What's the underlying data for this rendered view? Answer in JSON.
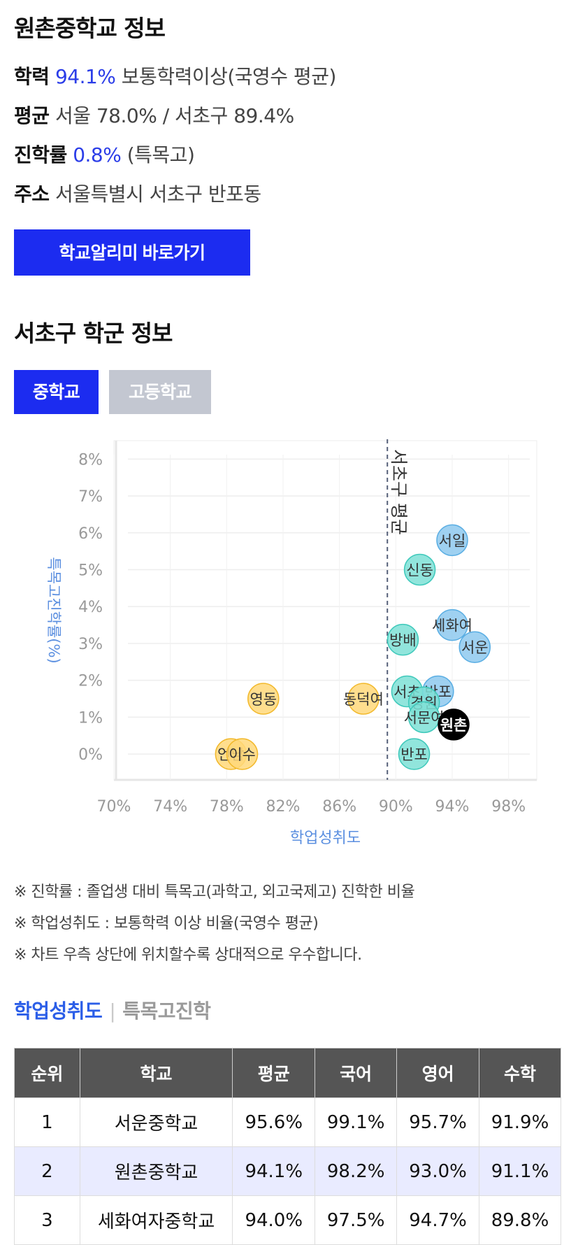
{
  "school": {
    "title": "원촌중학교 정보",
    "achievement_label": "학력",
    "achievement_value": "94.1%",
    "achievement_desc": "보통학력이상(국영수 평균)",
    "average_label": "평균",
    "average_value": "서울 78.0% / 서초구 89.4%",
    "rate_label": "진학률",
    "rate_value": "0.8%",
    "rate_desc": "(특목고)",
    "address_label": "주소",
    "address_value": "서울특별시 서초구 반포동",
    "link_button": "학교알리미 바로가기"
  },
  "district": {
    "title": "서초구 학군 정보",
    "tabs": [
      {
        "label": "중학교",
        "active": true
      },
      {
        "label": "고등학교",
        "active": false
      }
    ]
  },
  "chart_data": {
    "type": "scatter",
    "xlabel": "학업성취도",
    "ylabel": "특목고진학률(%)",
    "xlim": [
      70,
      100
    ],
    "ylim": [
      -0.7,
      8.5
    ],
    "x_ticks": [
      "70%",
      "74%",
      "78%",
      "82%",
      "86%",
      "90%",
      "94%",
      "98%"
    ],
    "y_ticks": [
      "0%",
      "1%",
      "2%",
      "3%",
      "4%",
      "5%",
      "6%",
      "7%",
      "8%"
    ],
    "reference_line": {
      "x": 89.4,
      "label": "서초구 평균"
    },
    "grid": true,
    "points": [
      {
        "label": "서일",
        "x": 94.0,
        "y": 5.8,
        "group": "blue"
      },
      {
        "label": "신동",
        "x": 91.7,
        "y": 5.0,
        "group": "teal"
      },
      {
        "label": "세화여",
        "x": 94.0,
        "y": 3.5,
        "group": "blue"
      },
      {
        "label": "서운",
        "x": 95.6,
        "y": 2.9,
        "group": "blue"
      },
      {
        "label": "방배",
        "x": 90.5,
        "y": 3.1,
        "group": "teal"
      },
      {
        "label": "영동",
        "x": 80.6,
        "y": 1.5,
        "group": "yellow"
      },
      {
        "label": "동덕여",
        "x": 87.7,
        "y": 1.5,
        "group": "yellow"
      },
      {
        "label": "서초",
        "x": 90.8,
        "y": 1.7,
        "group": "teal"
      },
      {
        "label": "반포",
        "x": 93.0,
        "y": 1.7,
        "group": "blue"
      },
      {
        "label": "경원",
        "x": 92.0,
        "y": 1.4,
        "group": "teal"
      },
      {
        "label": "서문여",
        "x": 92.0,
        "y": 1.0,
        "group": "teal"
      },
      {
        "label": "원촌",
        "x": 94.1,
        "y": 0.8,
        "group": "current"
      },
      {
        "label": "반포",
        "x": 91.3,
        "y": 0.0,
        "group": "teal"
      },
      {
        "label": "언남",
        "x": 78.3,
        "y": 0.0,
        "group": "yellow"
      },
      {
        "label": "이수",
        "x": 79.1,
        "y": 0.0,
        "group": "yellow"
      }
    ],
    "colors": {
      "blue": "#8ec9ef",
      "blue_stroke": "#5aaee3",
      "teal": "#7ee0d6",
      "teal_stroke": "#3fc9bb",
      "yellow": "#ffd87a",
      "yellow_stroke": "#f2b92c",
      "current": "#000000"
    }
  },
  "notes": [
    "※ 진학률 : 졸업생 대비 특목고(과학고, 외고국제고) 진학한 비율",
    "※ 학업성취도 : 보통학력 이상 비율(국영수 평균)",
    "※ 차트 우측 상단에 위치할수록 상대적으로 우수합니다."
  ],
  "ranking": {
    "tab_active": "학업성취도",
    "tab_inactive": "특목고진학",
    "headers": [
      "순위",
      "학교",
      "평균",
      "국어",
      "영어",
      "수학"
    ],
    "rows": [
      {
        "rank": "1",
        "school": "서운중학교",
        "avg": "95.6%",
        "kor": "99.1%",
        "eng": "95.7%",
        "math": "91.9%",
        "highlight": false
      },
      {
        "rank": "2",
        "school": "원촌중학교",
        "avg": "94.1%",
        "kor": "98.2%",
        "eng": "93.0%",
        "math": "91.1%",
        "highlight": true
      },
      {
        "rank": "3",
        "school": "세화여자중학교",
        "avg": "94.0%",
        "kor": "97.5%",
        "eng": "94.7%",
        "math": "89.8%",
        "highlight": false
      }
    ]
  }
}
